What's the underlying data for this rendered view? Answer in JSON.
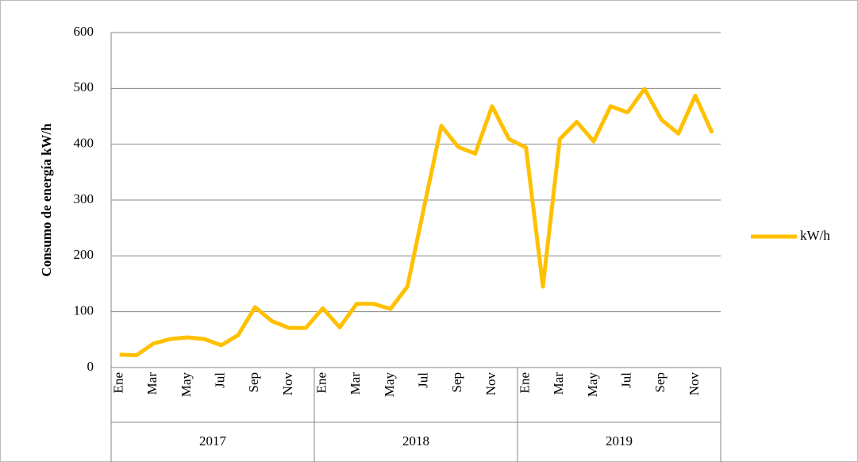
{
  "chart_data": {
    "type": "line",
    "y_label": "Consumo de energía kW/h",
    "categories": [
      "Ene",
      null,
      "Mar",
      null,
      "May",
      null,
      "Jul",
      null,
      "Sep",
      null,
      "Nov",
      null,
      "Ene",
      null,
      "Mar",
      null,
      "May",
      null,
      "Jul",
      null,
      "Sep",
      null,
      "Nov",
      null,
      "Ene",
      null,
      "Mar",
      null,
      "May",
      null,
      "Jul",
      null,
      "Sep",
      null,
      "Nov",
      null
    ],
    "groups": [
      "2017",
      "2018",
      "2019"
    ],
    "series": [
      {
        "name": "kW/h",
        "color": "#ffc000",
        "values": [
          23,
          22,
          43,
          51,
          54,
          51,
          40,
          58,
          108,
          83,
          71,
          71,
          106,
          72,
          114,
          114,
          105,
          145,
          290,
          433,
          395,
          383,
          468,
          409,
          394,
          145,
          409,
          440,
          405,
          468,
          457,
          499,
          444,
          419,
          487,
          420
        ]
      }
    ],
    "ylim": [
      0,
      600
    ],
    "yticks": [
      0,
      100,
      200,
      300,
      400,
      500,
      600
    ],
    "grid": true,
    "legend": "right"
  }
}
